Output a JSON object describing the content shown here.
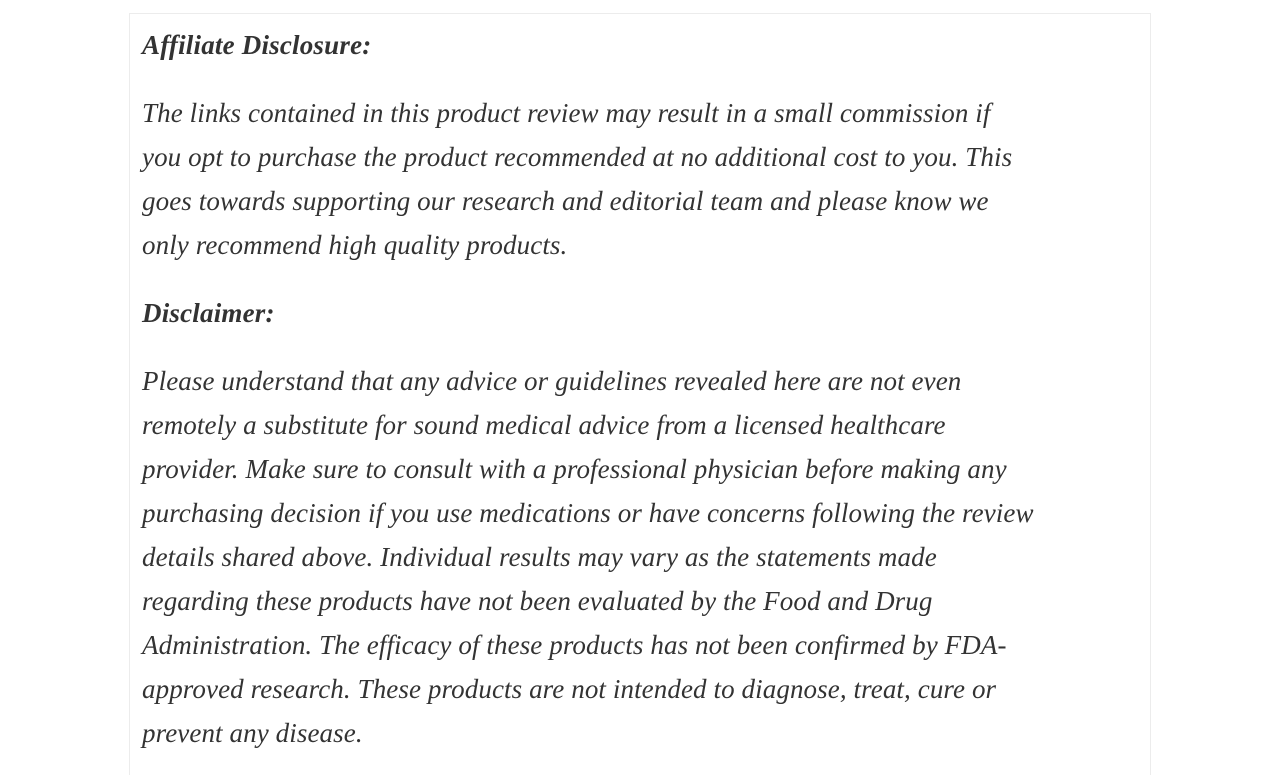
{
  "page": {
    "background_color": "#ffffff",
    "card_border_color": "#ececec",
    "text_color": "#333333"
  },
  "article": {
    "sections": [
      {
        "heading": "Affiliate Disclosure:",
        "paragraph": "The links contained in this product review may result in a small commission if\nyou opt to purchase the product recommended at no additional cost to you. This\ngoes towards supporting our research and editorial team and please know we\nonly recommend high quality products."
      },
      {
        "heading": "Disclaimer:",
        "paragraph": "Please understand that any advice or guidelines revealed here are not even\nremotely a substitute for sound medical advice from a licensed healthcare\nprovider. Make sure to consult with a professional physician before making any\npurchasing decision if you use medications or have concerns following the review\ndetails shared above. Individual results may vary as the statements made\nregarding these products have not been evaluated by the Food and Drug\nAdministration. The efficacy of these products has not been confirmed by FDA-\napproved research. These products are not intended to diagnose, treat, cure or\nprevent any disease."
      }
    ]
  }
}
